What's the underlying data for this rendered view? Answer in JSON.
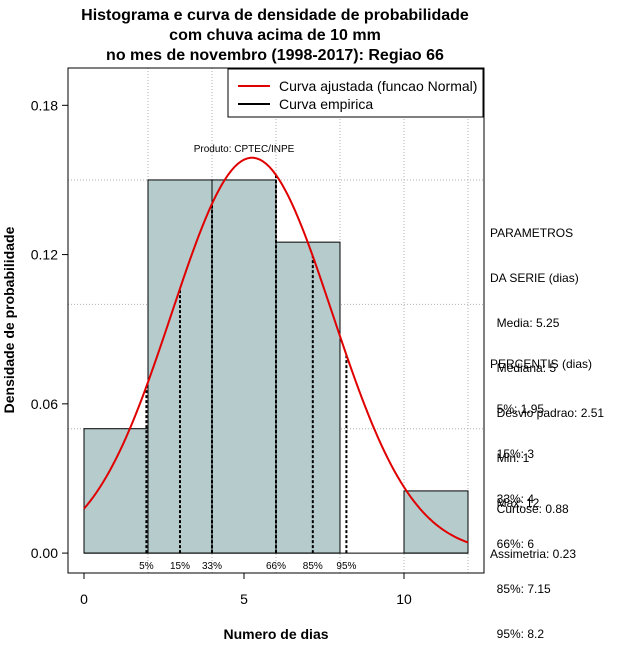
{
  "title_lines": [
    "Histograma e curva de densidade de probabilidade",
    "com chuva acima de 10 mm",
    "no mes de novembro (1998-2017): Regiao 66"
  ],
  "product_label": "Produto: CPTEC/INPE",
  "colors": {
    "bars": "#b5cbcc",
    "fit_curve": "#e00000",
    "empirical": "#000000",
    "grid": "#b0b0b0"
  },
  "chart_data": {
    "type": "bar",
    "xlabel": "Numero de dias",
    "ylabel": "Densidade de probabilidade",
    "xlim": [
      -0.5,
      12.5
    ],
    "ylim": [
      -0.008,
      0.195
    ],
    "x_ticks": [
      0,
      5,
      10
    ],
    "y_ticks": [
      0.0,
      0.06,
      0.12,
      0.18
    ],
    "y_tick_labels": [
      "0.00",
      "0.06",
      "0.12",
      "0.18"
    ],
    "grid": true,
    "bins": [
      {
        "start": 0,
        "end": 2,
        "density": 0.05
      },
      {
        "start": 2,
        "end": 4,
        "density": 0.15
      },
      {
        "start": 4,
        "end": 6,
        "density": 0.15
      },
      {
        "start": 6,
        "end": 8,
        "density": 0.125
      },
      {
        "start": 8,
        "end": 10,
        "density": 0.0
      },
      {
        "start": 10,
        "end": 12,
        "density": 0.025
      }
    ],
    "fitted_curve": {
      "distribution": "normal",
      "mean": 5.25,
      "sd": 2.51,
      "x_range": [
        0,
        12
      ]
    },
    "percentile_lines": [
      {
        "label": "5%",
        "x": 1.95
      },
      {
        "label": "15%",
        "x": 3
      },
      {
        "label": "33%",
        "x": 4
      },
      {
        "label": "66%",
        "x": 6
      },
      {
        "label": "85%",
        "x": 7.15
      },
      {
        "label": "95%",
        "x": 8.2
      }
    ],
    "legend": {
      "position": "top-right",
      "entries": [
        {
          "label": "Curva ajustada (funcao Normal)",
          "color": "#e00000"
        },
        {
          "label": "Curva empirica",
          "color": "#000000"
        }
      ]
    }
  },
  "parameters_block": [
    "PARAMETROS",
    "DA SERIE (dias)",
    "  Media: 5.25",
    "  Mediana: 5",
    "  Desvio padrao: 2.51",
    "  Min: 1",
    "  Max: 12"
  ],
  "percentiles_block": [
    "PERCENTIS (dias)",
    "  5%: 1.95",
    "  15%: 3",
    "  33%: 4",
    "  66%: 6",
    "  85%: 7.15",
    "  95%: 8.2"
  ],
  "moments_block": [
    "  Curtose: 0.88",
    "Assimetria: 0.23"
  ]
}
